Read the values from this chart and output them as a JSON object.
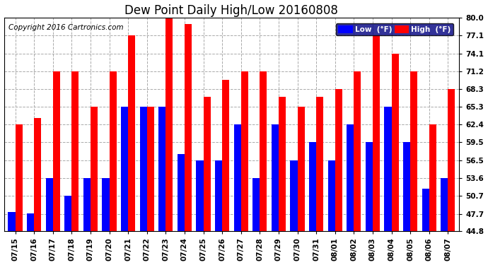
{
  "title": "Dew Point Daily High/Low 20160808",
  "copyright": "Copyright 2016 Cartronics.com",
  "dates": [
    "07/15",
    "07/16",
    "07/17",
    "07/18",
    "07/19",
    "07/20",
    "07/21",
    "07/22",
    "07/23",
    "07/24",
    "07/25",
    "07/26",
    "07/27",
    "07/28",
    "07/29",
    "07/30",
    "07/31",
    "08/01",
    "08/02",
    "08/03",
    "08/04",
    "08/05",
    "08/06",
    "08/07"
  ],
  "low_values": [
    48.0,
    47.8,
    53.6,
    50.7,
    53.6,
    53.6,
    65.3,
    65.3,
    65.3,
    57.5,
    56.5,
    56.5,
    62.4,
    53.6,
    62.4,
    56.5,
    59.5,
    56.5,
    62.4,
    59.5,
    65.3,
    59.5,
    51.8,
    53.6
  ],
  "high_values": [
    62.4,
    63.5,
    71.2,
    71.2,
    65.3,
    71.2,
    77.1,
    65.3,
    80.0,
    79.0,
    67.0,
    69.8,
    71.2,
    71.2,
    67.0,
    65.3,
    67.0,
    68.3,
    71.2,
    77.1,
    74.1,
    71.2,
    62.4,
    68.3
  ],
  "bar_width": 0.38,
  "low_color": "#0000ff",
  "high_color": "#ff0000",
  "bg_color": "#ffffff",
  "grid_color": "#aaaaaa",
  "ylim_min": 44.8,
  "ylim_max": 80.0,
  "yticks": [
    44.8,
    47.7,
    50.7,
    53.6,
    56.5,
    59.5,
    62.4,
    65.3,
    68.3,
    71.2,
    74.1,
    77.1,
    80.0
  ],
  "title_fontsize": 12,
  "tick_fontsize": 7.5,
  "copyright_fontsize": 7.5
}
